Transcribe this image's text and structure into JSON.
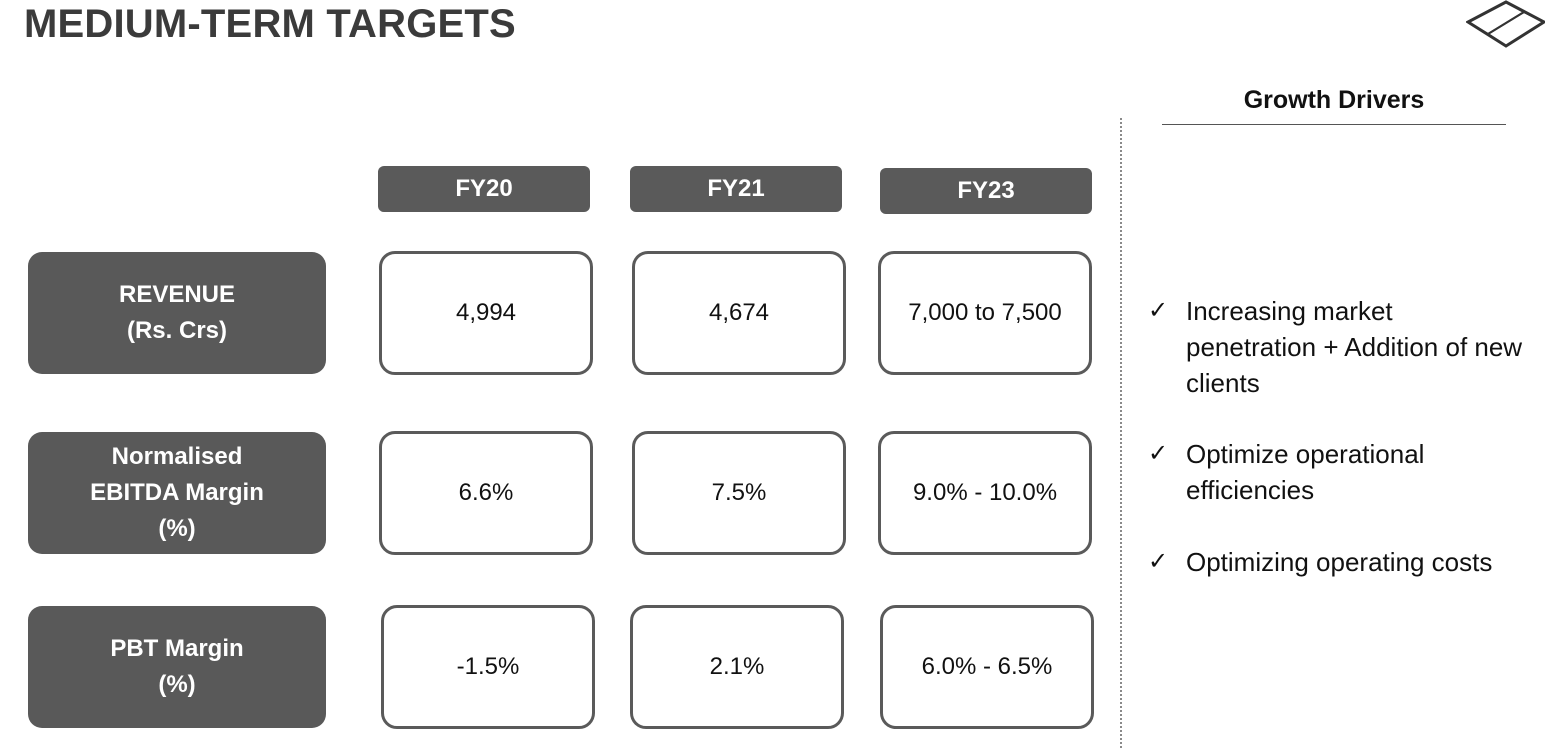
{
  "title": "MEDIUM-TERM TARGETS",
  "logo": "diamond-logo-icon",
  "columns": [
    "FY20",
    "FY21",
    "FY23"
  ],
  "rows": [
    {
      "label": "REVENUE\n(Rs. Crs)",
      "values": [
        "4,994",
        "4,674",
        "7,000 to 7,500"
      ]
    },
    {
      "label": "Normalised\nEBITDA Margin\n(%)",
      "values": [
        "6.6%",
        "7.5%",
        "9.0% - 10.0%"
      ]
    },
    {
      "label": "PBT Margin\n(%)",
      "values": [
        "-1.5%",
        "2.1%",
        "6.0% - 6.5%"
      ]
    }
  ],
  "growth_drivers": {
    "title": "Growth Drivers",
    "check_icon": "checkmark-icon",
    "items": [
      "Increasing market penetration + Addition of new clients",
      "Optimize operational efficiencies",
      "Optimizing operating costs"
    ]
  },
  "colors": {
    "box_fill": "#595959",
    "box_border": "#5a5a5a",
    "text": "#111111"
  }
}
